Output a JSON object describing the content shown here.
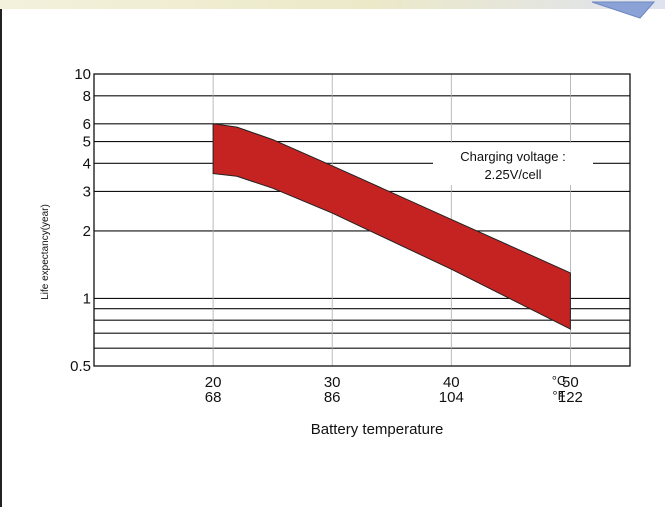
{
  "chart_data": {
    "type": "area",
    "xlabel": "Battery temperature",
    "ylabel": "Life expectancy(year)",
    "x_unit_top": "°C",
    "x_unit_bottom": "°F",
    "xticks": [
      {
        "c": 20,
        "top": "20",
        "bottom": "68"
      },
      {
        "c": 30,
        "top": "30",
        "bottom": "86"
      },
      {
        "c": 40,
        "top": "40",
        "bottom": "104"
      },
      {
        "c": 50,
        "top": "50",
        "bottom": "122"
      }
    ],
    "xlim": [
      10,
      55
    ],
    "yscale": "log",
    "ylim": [
      0.5,
      10
    ],
    "yticks": [
      {
        "v": 10,
        "label": "10"
      },
      {
        "v": 8,
        "label": "8"
      },
      {
        "v": 6,
        "label": "6"
      },
      {
        "v": 5,
        "label": "5"
      },
      {
        "v": 4,
        "label": "4"
      },
      {
        "v": 3,
        "label": "3"
      },
      {
        "v": 2,
        "label": "2"
      },
      {
        "v": 1,
        "label": "1"
      },
      {
        "v": 0.5,
        "label": "0.5"
      }
    ],
    "gridlines_y": [
      10,
      8,
      6,
      5,
      4,
      3,
      2,
      1,
      0.9,
      0.8,
      0.7,
      0.6,
      0.5
    ],
    "gridlines_x": [
      20,
      30,
      40,
      50
    ],
    "band": {
      "upper": [
        [
          20,
          6.0
        ],
        [
          22,
          5.8
        ],
        [
          25,
          5.1
        ],
        [
          30,
          3.9
        ],
        [
          40,
          2.25
        ],
        [
          50,
          1.3
        ]
      ],
      "lower": [
        [
          20,
          3.6
        ],
        [
          22,
          3.5
        ],
        [
          25,
          3.1
        ],
        [
          30,
          2.4
        ],
        [
          40,
          1.35
        ],
        [
          50,
          0.73
        ]
      ],
      "color": "#c52222"
    },
    "annotation": [
      "Charging voltage :",
      "2.25V/cell"
    ],
    "grid": true
  }
}
